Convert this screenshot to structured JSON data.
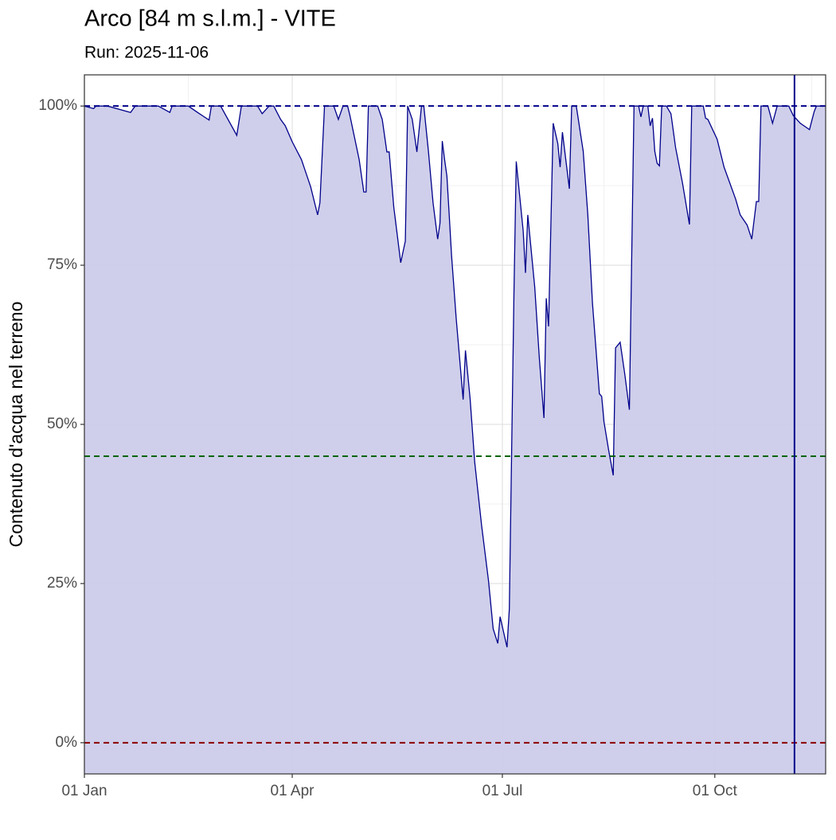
{
  "chart_data": {
    "type": "area",
    "title": "Arco [84 m s.l.m.] - VITE",
    "subtitle": "Run: 2025-11-06",
    "y_label": "Contenuto d'acqua nel terreno",
    "x": [
      0,
      4,
      5,
      10,
      20,
      22,
      32,
      37,
      38,
      45,
      49,
      54,
      55,
      59,
      66,
      68,
      75,
      77,
      80,
      82,
      85,
      87,
      90,
      94,
      98,
      101,
      102,
      104,
      108,
      110,
      112,
      114,
      115,
      119,
      121,
      122,
      123,
      127,
      129,
      131,
      132,
      134,
      137,
      139,
      140,
      142,
      144,
      146,
      147,
      149,
      151,
      153,
      154,
      155,
      156,
      157,
      158,
      159,
      161,
      164,
      165,
      167,
      169,
      172,
      175,
      177,
      179,
      180,
      183,
      184,
      186,
      187,
      190,
      191,
      192,
      195,
      197,
      199,
      200,
      201,
      203,
      205,
      206,
      207,
      210,
      211,
      213,
      216,
      218,
      220,
      223,
      224,
      225,
      227,
      229,
      230,
      232,
      234,
      236,
      238,
      240,
      241,
      242,
      244,
      245,
      246,
      247,
      248,
      249,
      250,
      252,
      254,
      256,
      259,
      262,
      263,
      268,
      269,
      270,
      274,
      277,
      282,
      284,
      287,
      289,
      291,
      292,
      293,
      296,
      298,
      300,
      305,
      307,
      310,
      314,
      316,
      317,
      321
    ],
    "series": [
      {
        "color": "#00008b",
        "fill": "#ccccea",
        "values": [
          100,
          99.6,
          100,
          100,
          99,
          100,
          100,
          99,
          100,
          100,
          99,
          97.8,
          100,
          100,
          95.4,
          100,
          100,
          98.8,
          100,
          100,
          97.9,
          96.9,
          94.4,
          91.6,
          87.3,
          82.9,
          84.8,
          100,
          100,
          97.9,
          100,
          100,
          98.5,
          91.6,
          86.5,
          86.5,
          100,
          100,
          97.9,
          92.8,
          92.8,
          84.1,
          75.4,
          78.8,
          100,
          97.9,
          92.8,
          100,
          100,
          92.9,
          84.8,
          79.1,
          81.6,
          94.5,
          91.6,
          89,
          82.9,
          76.6,
          66.6,
          53.9,
          61.6,
          54.1,
          44.1,
          34.1,
          25.4,
          17.9,
          15.6,
          19.8,
          15,
          21,
          70.4,
          91.3,
          80.4,
          73.8,
          82.9,
          71.6,
          60.4,
          51,
          69.8,
          65.4,
          97.3,
          94.1,
          90.4,
          95.9,
          87,
          100,
          100,
          92.9,
          82.9,
          69.1,
          54.8,
          54.4,
          50.4,
          46,
          42,
          62,
          62.9,
          57.9,
          52.3,
          100,
          100,
          98.3,
          100,
          100,
          96.9,
          98.1,
          92.9,
          91,
          90.6,
          100,
          100,
          98.8,
          93.5,
          87.9,
          81.4,
          100,
          100,
          98.1,
          97.9,
          94.8,
          90.4,
          85.4,
          82.9,
          81.3,
          79.1,
          85,
          85,
          100,
          100,
          97.3,
          100,
          100,
          98.5,
          97.3,
          96.3,
          99.1,
          100,
          100
        ]
      }
    ],
    "xlim": [
      0,
      321
    ],
    "ylim": [
      -4.9,
      104.9
    ],
    "xticks": [
      {
        "value": 0,
        "label": "01 Jan"
      },
      {
        "value": 90,
        "label": "01 Apr"
      },
      {
        "value": 181,
        "label": "01 Jul"
      },
      {
        "value": 273,
        "label": "01 Oct"
      }
    ],
    "yticks": [
      {
        "value": 0,
        "label": "0%"
      },
      {
        "value": 25,
        "label": "25%"
      },
      {
        "value": 50,
        "label": "50%"
      },
      {
        "value": 75,
        "label": "75%"
      },
      {
        "value": 100,
        "label": "100%"
      }
    ],
    "hlines": [
      {
        "value": 100,
        "color": "#00008b"
      },
      {
        "value": 45,
        "color": "#006400"
      },
      {
        "value": 0,
        "color": "#8b0000"
      }
    ],
    "vline": {
      "value": 307.5,
      "color": "#00008b"
    },
    "grid": true
  }
}
